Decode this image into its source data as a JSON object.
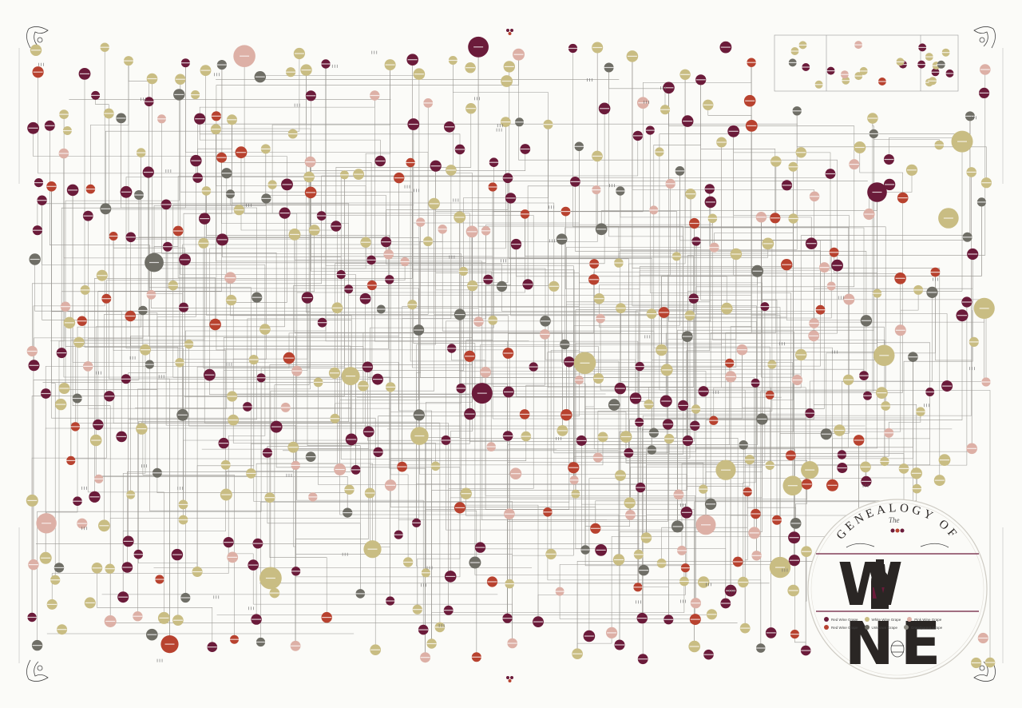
{
  "title": {
    "the": "The",
    "genealogy_of": "GENEALOGY OF",
    "wine_letters": [
      "W",
      "N",
      "E"
    ]
  },
  "legend": [
    {
      "label": "Red Wine Grape",
      "color": "#6b1b3a"
    },
    {
      "label": "White Wine Grape",
      "color": "#c9bd83"
    },
    {
      "label": "Pink Wine Grape",
      "color": "#ddb0a6"
    },
    {
      "label": "Red Wine Grape",
      "color": "#b8422f"
    },
    {
      "label": "Unknown Grape",
      "color": "#6f6e66"
    },
    {
      "label": "Grandparent Grape",
      "color": "#8f8d84"
    }
  ],
  "colors": {
    "background": "#fbfbf8",
    "line": "#9a9893",
    "red": "#6b1b3a",
    "white": "#c9bd83",
    "pink": "#ddb0a6",
    "orange": "#b8422f",
    "gray": "#6f6e66",
    "ink": "#2a2624"
  }
}
